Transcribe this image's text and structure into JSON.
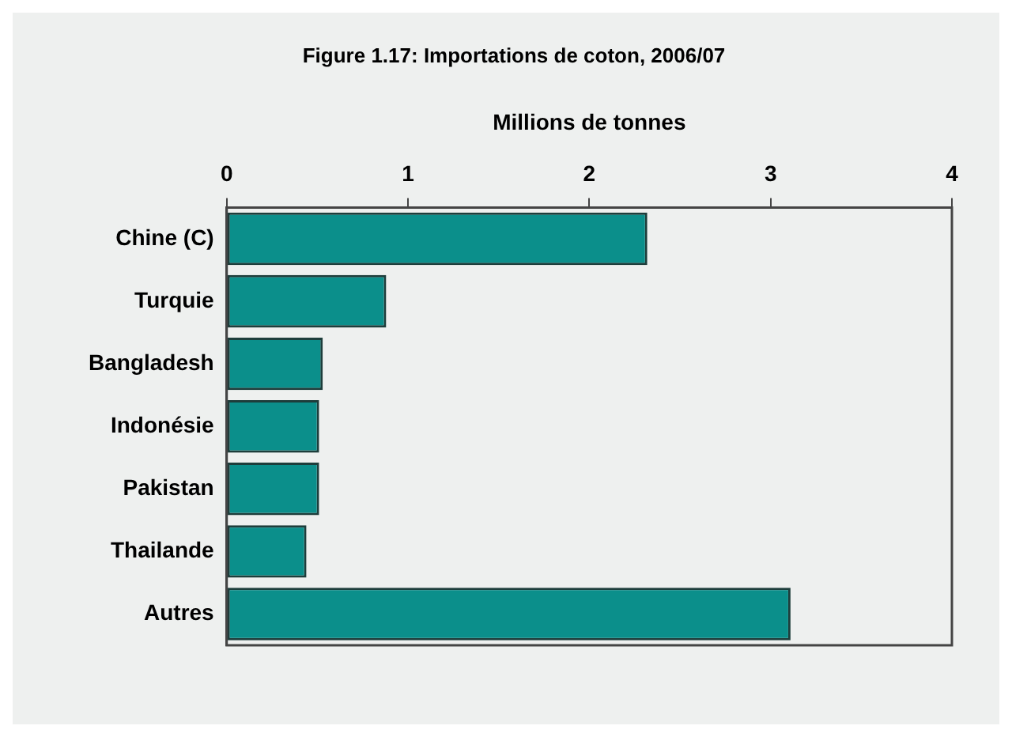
{
  "chart_data": {
    "type": "bar",
    "orientation": "horizontal",
    "title": "Figure 1.17: Importations de coton, 2006/07",
    "xlabel": "Millions de tonnes",
    "categories": [
      "Chine (C)",
      "Turquie",
      "Bangladesh",
      "Indonésie",
      "Pakistan",
      "Thailande",
      "Autres"
    ],
    "values": [
      2.32,
      0.88,
      0.53,
      0.51,
      0.51,
      0.44,
      3.11
    ],
    "color": "#0b8f8b",
    "xlim": [
      0,
      4
    ],
    "xticks": [
      0,
      1,
      2,
      3,
      4
    ],
    "grid": false,
    "legend": false
  }
}
